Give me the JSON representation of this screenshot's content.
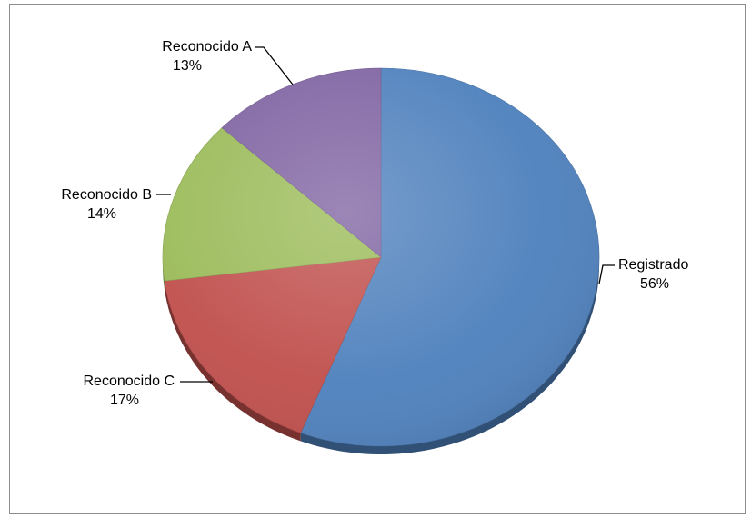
{
  "chart_data": {
    "type": "pie",
    "title": "",
    "slices": [
      {
        "label": "Registrado",
        "value": 56,
        "pct_label": "56%",
        "color": "#4F81BD",
        "icon": "none"
      },
      {
        "label": "Reconocido C",
        "value": 17,
        "pct_label": "17%",
        "color": "#C0504D",
        "icon": "none"
      },
      {
        "label": "Reconocido B",
        "value": 14,
        "pct_label": "14%",
        "color": "#9BBB59",
        "icon": "none"
      },
      {
        "label": "Reconocido A",
        "value": 13,
        "pct_label": "13%",
        "color": "#8064A2",
        "icon": "none"
      }
    ],
    "start_angle_deg": 0,
    "direction": "clockwise",
    "style": "3d-tilted",
    "legend": "none",
    "data_labels": "category-and-percent-outside-with-leaders"
  }
}
